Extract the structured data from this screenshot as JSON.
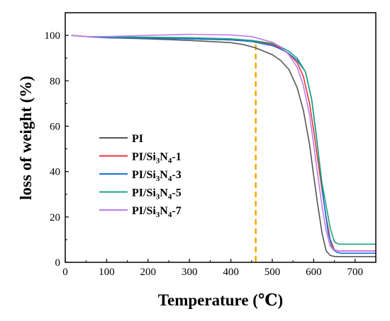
{
  "chart_data": {
    "type": "line",
    "title": "",
    "xlabel": "Temperature (℃)",
    "ylabel": "loss of weight (%)",
    "xlim": [
      0,
      750
    ],
    "ylim": [
      0,
      110
    ],
    "xticks": [
      0,
      100,
      200,
      300,
      400,
      500,
      600,
      700
    ],
    "yticks": [
      0,
      20,
      40,
      60,
      80,
      100
    ],
    "grid": false,
    "legend_position": "center-left",
    "reference_line": {
      "x": 460,
      "color": "#f5a800",
      "style": "dashed"
    },
    "series": [
      {
        "name": "PI",
        "legend": {
          "main": "PI",
          "parts": []
        },
        "color": "#555555",
        "x": [
          15,
          50,
          100,
          200,
          300,
          400,
          430,
          460,
          480,
          500,
          520,
          540,
          560,
          575,
          590,
          600,
          610,
          620,
          630,
          640,
          650,
          660,
          700,
          750
        ],
        "y": [
          100,
          99.5,
          99,
          98.5,
          97.8,
          96.8,
          96,
          94.5,
          93,
          91.5,
          89,
          85,
          77,
          67,
          52,
          38,
          25,
          13,
          5,
          3,
          2.6,
          2.5,
          2.5,
          2.5
        ]
      },
      {
        "name": "PI/Si3N4-1",
        "legend": {
          "main": "PI/Si",
          "parts": [
            [
              "3",
              "N"
            ],
            [
              "4",
              "-1"
            ]
          ]
        },
        "color": "#e8343c",
        "x": [
          15,
          50,
          100,
          200,
          300,
          400,
          450,
          500,
          520,
          540,
          560,
          575,
          590,
          600,
          610,
          620,
          630,
          640,
          650,
          660,
          670,
          700,
          750
        ],
        "y": [
          100,
          99.5,
          99.2,
          99,
          98.5,
          98,
          97.5,
          96,
          94.5,
          92,
          88,
          82,
          70,
          58,
          45,
          32,
          20,
          10,
          5.5,
          5,
          5,
          5,
          5
        ]
      },
      {
        "name": "PI/Si3N4-3",
        "legend": {
          "main": "PI/Si",
          "parts": [
            [
              "3",
              "N"
            ],
            [
              "4",
              "-3"
            ]
          ]
        },
        "color": "#1a6fd6",
        "x": [
          15,
          50,
          100,
          200,
          300,
          400,
          450,
          500,
          520,
          540,
          560,
          580,
          595,
          605,
          615,
          625,
          635,
          645,
          655,
          665,
          700,
          750
        ],
        "y": [
          100,
          99.5,
          99,
          98.8,
          98.5,
          98,
          97.3,
          95.5,
          94,
          92,
          89,
          84,
          72,
          58,
          42,
          26,
          13,
          6,
          4.5,
          4,
          4,
          4
        ]
      },
      {
        "name": "PI/Si3N4-5",
        "legend": {
          "main": "PI/Si",
          "parts": [
            [
              "3",
              "N"
            ],
            [
              "4",
              "-5"
            ]
          ]
        },
        "color": "#1aa57a",
        "x": [
          15,
          50,
          100,
          200,
          300,
          400,
          450,
          500,
          520,
          540,
          560,
          580,
          595,
          610,
          620,
          630,
          640,
          650,
          660,
          670,
          700,
          750
        ],
        "y": [
          100,
          99.5,
          99.4,
          99.2,
          99,
          98.5,
          97.8,
          96.5,
          95,
          93,
          90,
          84,
          72,
          50,
          35,
          25,
          15,
          9,
          8,
          8,
          8,
          8
        ]
      },
      {
        "name": "PI/Si3N4-7",
        "legend": {
          "main": "PI/Si",
          "parts": [
            [
              "3",
              "N"
            ],
            [
              "4",
              "-7"
            ]
          ]
        },
        "color": "#c07be8",
        "x": [
          15,
          50,
          100,
          200,
          300,
          400,
          450,
          500,
          520,
          540,
          560,
          575,
          590,
          600,
          610,
          620,
          630,
          640,
          650,
          660,
          700,
          750
        ],
        "y": [
          100,
          99.5,
          99.5,
          100,
          100.5,
          100.2,
          99.5,
          97,
          95,
          91.5,
          86,
          78,
          65,
          52,
          38,
          25,
          14,
          7,
          5.5,
          5,
          5,
          5
        ]
      }
    ]
  }
}
